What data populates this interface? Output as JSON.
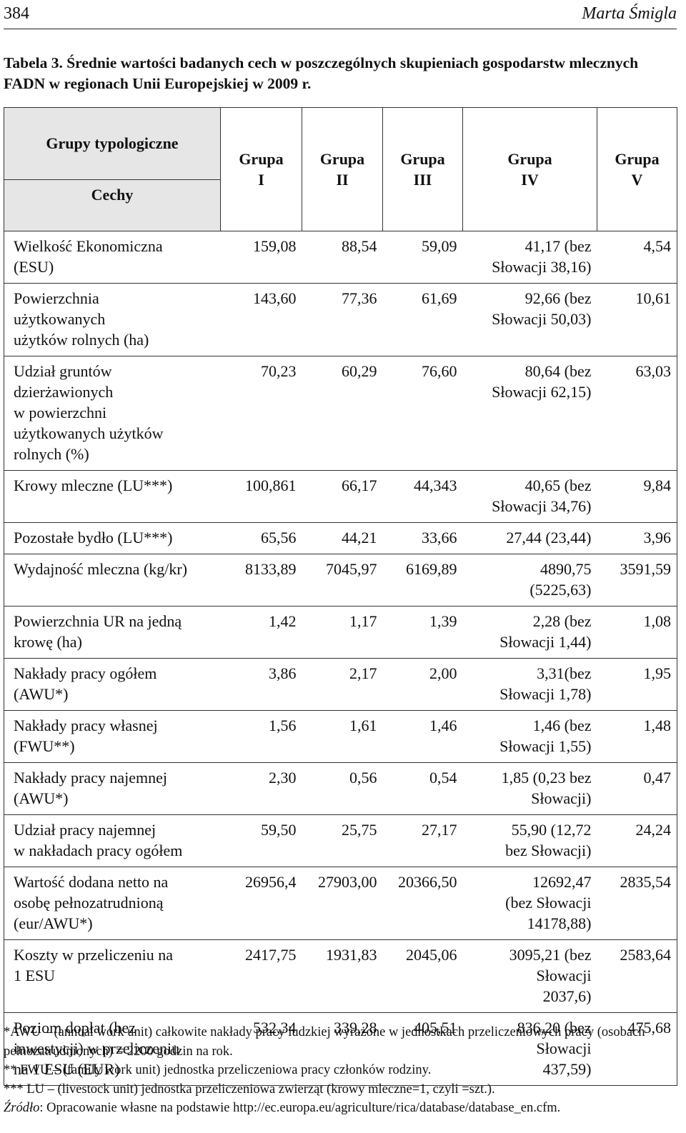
{
  "header": {
    "page_number": "384",
    "author": "Marta Śmigla"
  },
  "caption": "Tabela 3. Średnie wartości badanych cech w poszczególnych skupieniach gospodarstw mlecznych FADN w regionach Unii Europejskiej w 2009 r.",
  "table": {
    "corner_top": "Grupy typologiczne",
    "corner_bottom": "Cechy",
    "columns": [
      "Grupa\nI",
      "Grupa\nII",
      "Grupa\nIII",
      "Grupa\nIV",
      "Grupa\nV"
    ],
    "rows": [
      [
        "Wielkość Ekonomiczna\n(ESU)",
        "159,08",
        "88,54",
        "59,09",
        "41,17 (bez\nSłowacji 38,16)",
        "4,54"
      ],
      [
        "Powierzchnia\nużytkowanych\nużytków rolnych (ha)",
        "143,60",
        "77,36",
        "61,69",
        "92,66 (bez\nSłowacji 50,03)",
        "10,61"
      ],
      [
        "Udział gruntów\ndzierżawionych\nw powierzchni\nużytkowanych użytków\nrolnych (%)",
        "70,23",
        "60,29",
        "76,60",
        "80,64 (bez\nSłowacji 62,15)",
        "63,03"
      ],
      [
        "Krowy mleczne (LU***)",
        "100,861",
        "66,17",
        "44,343",
        "40,65 (bez\nSłowacji 34,76)",
        "9,84"
      ],
      [
        "Pozostałe bydło (LU***)",
        "65,56",
        "44,21",
        "33,66",
        "27,44 (23,44)",
        "3,96"
      ],
      [
        "Wydajność mleczna (kg/kr)",
        "8133,89",
        "7045,97",
        "6169,89",
        "4890,75\n(5225,63)",
        "3591,59"
      ],
      [
        "Powierzchnia UR na jedną\nkrowę (ha)",
        "1,42",
        "1,17",
        "1,39",
        "2,28 (bez\nSłowacji 1,44)",
        "1,08"
      ],
      [
        "Nakłady pracy ogółem\n(AWU*)",
        "3,86",
        "2,17",
        "2,00",
        "3,31(bez\nSłowacji 1,78)",
        "1,95"
      ],
      [
        "Nakłady pracy własnej\n(FWU**)",
        "1,56",
        "1,61",
        "1,46",
        "1,46 (bez\nSłowacji 1,55)",
        "1,48"
      ],
      [
        "Nakłady pracy najemnej\n(AWU*)",
        "2,30",
        "0,56",
        "0,54",
        "1,85 (0,23 bez\nSłowacji)",
        "0,47"
      ],
      [
        "Udział pracy najemnej\nw nakładach pracy ogółem",
        "59,50",
        "25,75",
        "27,17",
        "55,90 (12,72\nbez Słowacji)",
        "24,24"
      ],
      [
        "Wartość dodana netto na\nosobę pełnozatrudnioną\n(eur/AWU*)",
        "26956,4",
        "27903,00",
        "20366,50",
        "12692,47\n(bez Słowacji\n14178,88)",
        "2835,54"
      ],
      [
        "Koszty w przeliczeniu na\n1 ESU",
        "2417,75",
        "1931,83",
        "2045,06",
        "3095,21 (bez\nSłowacji\n2037,6)",
        "2583,64"
      ],
      [
        "Poziom dopłat (bez\ninwestycji) w przeliczeniu\nna 1 ESU (EUR)",
        "532,34",
        "339,28",
        "405,51",
        "836,20 (bez\nSłowacji\n437,59)",
        "475,68"
      ]
    ]
  },
  "footnotes": [
    "*AWU – (annual work unit) całkowite nakłady pracy ludzkiej wyrażone w jednostkach przeliczeniowych pracy (osobach pełnozatrudnionych) = 2200 godzin na rok.",
    "** FWU – (family work unit) jednostka przeliczeniowa pracy członków rodziny.",
    "*** LU – (livestock unit) jednostka przeliczeniowa zwierząt (krowy mleczne=1, czyli =szt.)."
  ],
  "source": {
    "label": "Źródło",
    "text": ": Opracowanie własne na podstawie http://ec.europa.eu/agriculture/rica/database/database_en.cfm."
  }
}
